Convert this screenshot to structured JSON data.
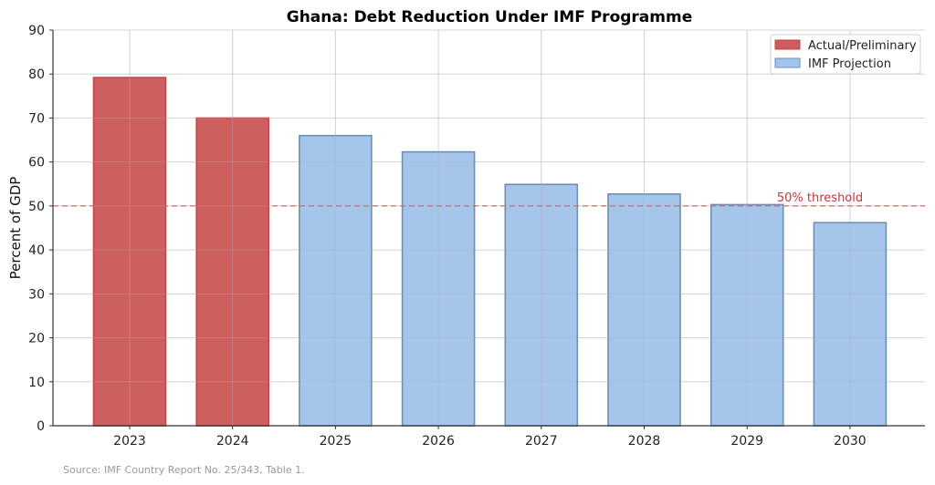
{
  "chart_data": {
    "type": "bar",
    "title": "Ghana: Debt Reduction Under IMF Programme",
    "xlabel": "",
    "ylabel": "Percent of GDP",
    "ylim": [
      0,
      90
    ],
    "yticks": [
      0,
      10,
      20,
      30,
      40,
      50,
      60,
      70,
      80,
      90
    ],
    "grid": true,
    "categories": [
      "2023",
      "2024",
      "2025",
      "2026",
      "2027",
      "2028",
      "2029",
      "2030"
    ],
    "values": [
      79.2,
      70.0,
      66.0,
      62.3,
      54.9,
      52.7,
      50.3,
      46.2
    ],
    "series_type": [
      "Actual/Preliminary",
      "Actual/Preliminary",
      "IMF Projection",
      "IMF Projection",
      "IMF Projection",
      "IMF Projection",
      "IMF Projection",
      "IMF Projection"
    ],
    "legend": {
      "position": "upper right",
      "entries": [
        {
          "label": "Actual/Preliminary",
          "color": "#cd5c5c",
          "edge": "#c9424a"
        },
        {
          "label": "IMF Projection",
          "color": "#a3c4ea",
          "edge": "#6b8fb5"
        }
      ]
    },
    "reference_line": {
      "value": 50,
      "label": "50% threshold",
      "style": "dashed",
      "color": "#d9686b"
    },
    "source_note": "Source: IMF Country Report No. 25/343, Table 1."
  }
}
